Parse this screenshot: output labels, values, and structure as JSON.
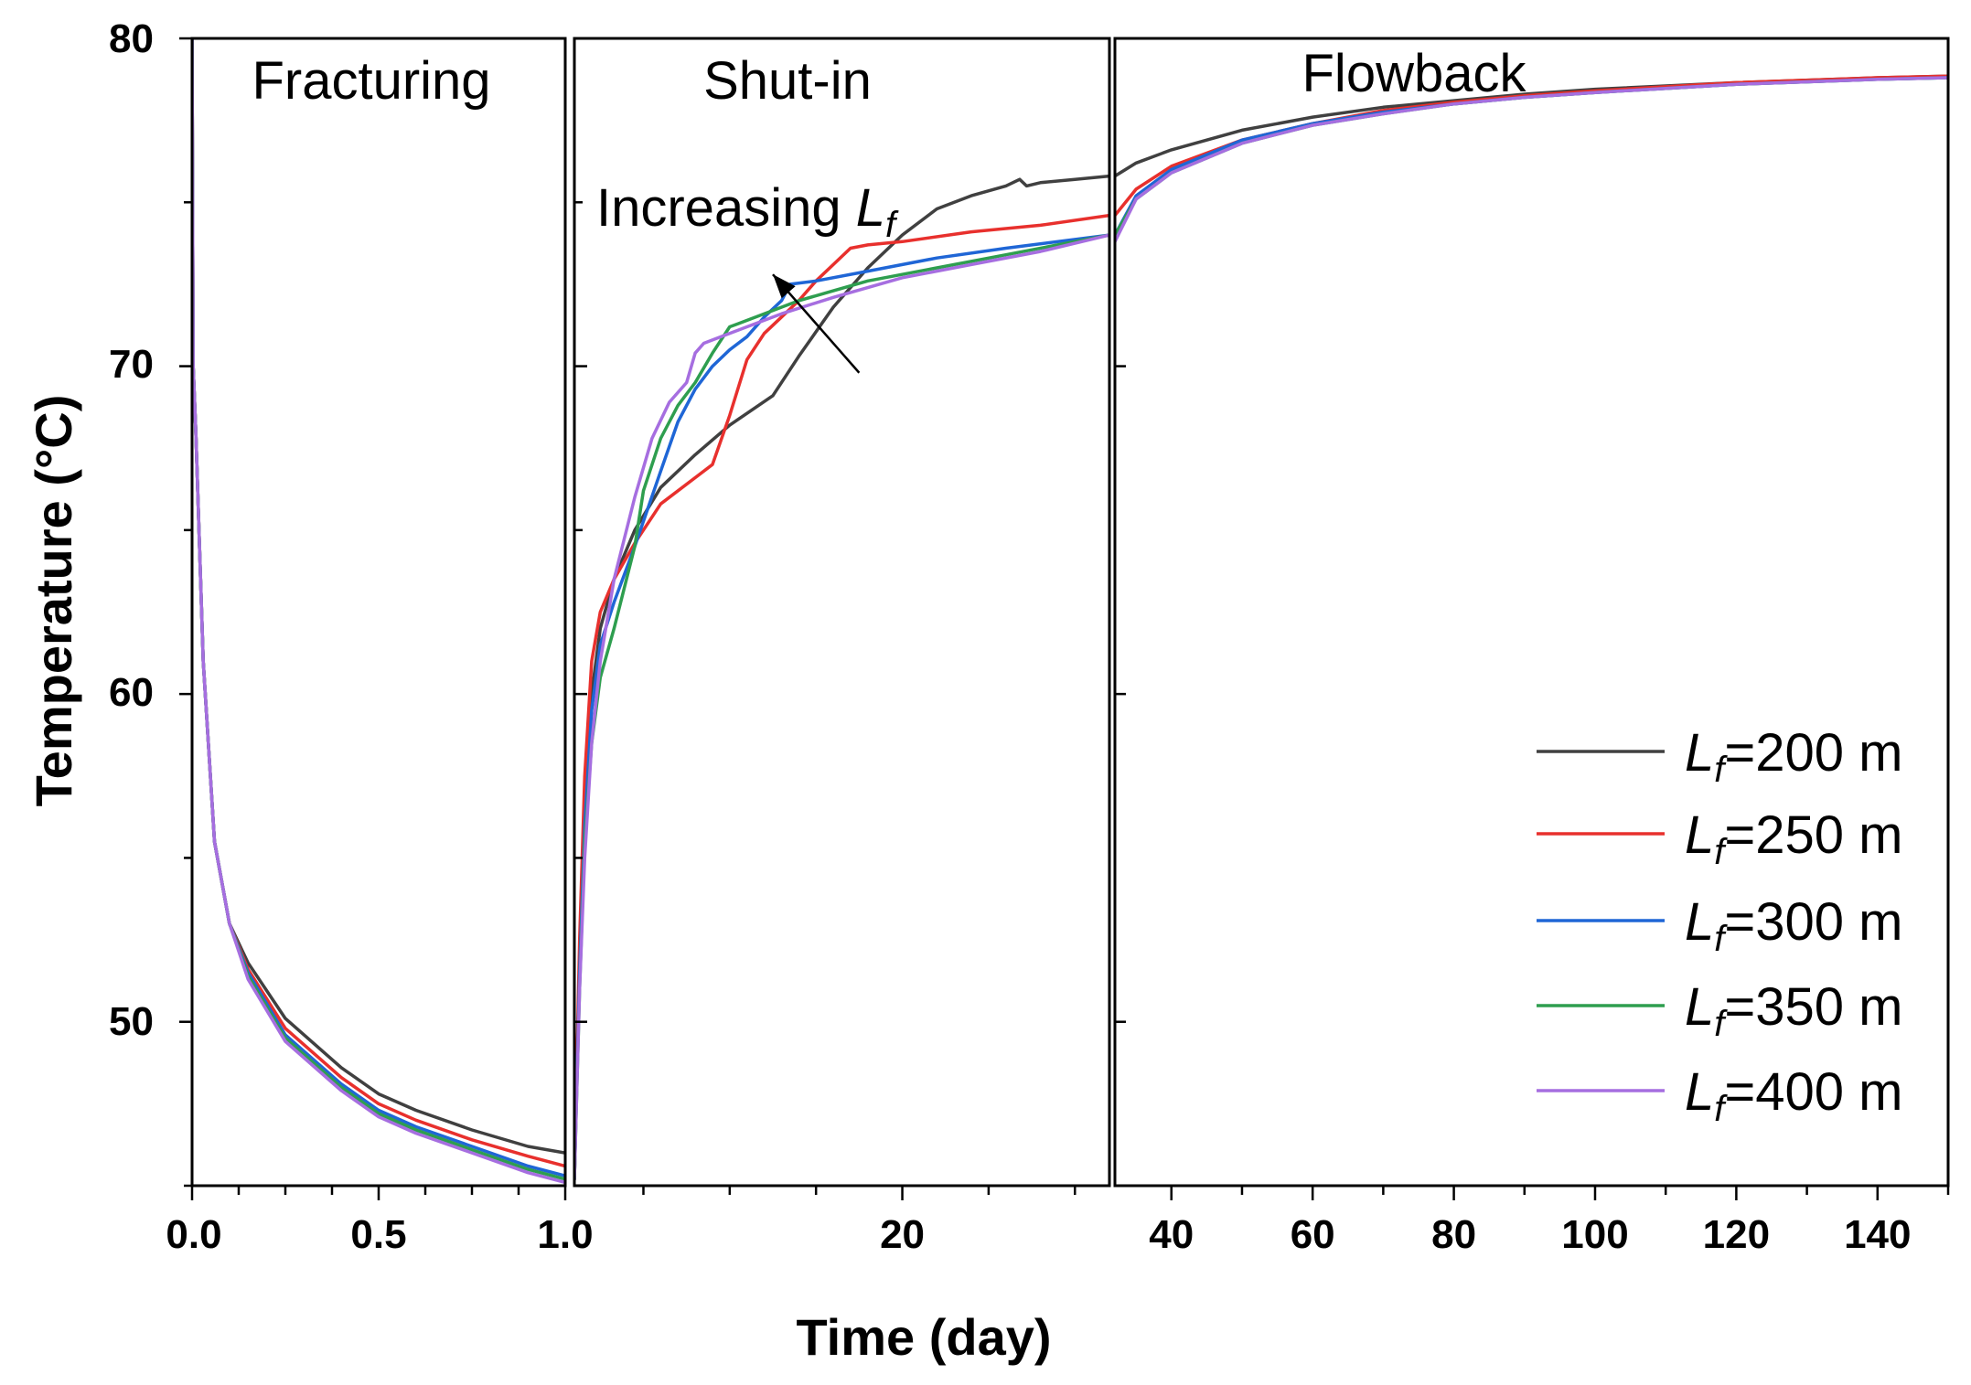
{
  "chart_data": {
    "type": "line",
    "xlabel": "Time (day)",
    "ylabel": "Temperature (°C)",
    "ylim": [
      45,
      80
    ],
    "yticks": [
      "50",
      "60",
      "70",
      "80"
    ],
    "panels": [
      {
        "name": "Fracturing",
        "label": "Fracturing",
        "xlim": [
          0,
          1
        ],
        "xticks": [
          "0.0",
          "0.5",
          "1.0"
        ],
        "xtick_values": [
          0,
          0.5,
          1.0
        ],
        "minor_step": 0.125
      },
      {
        "name": "Shut-in",
        "label": "Shut-in",
        "xlim": [
          1,
          32
        ],
        "xticks": [
          "20"
        ],
        "xtick_values": [
          20
        ],
        "minor_step": 5
      },
      {
        "name": "Flowback",
        "label": "Flowback",
        "xlim": [
          32,
          150
        ],
        "xticks": [
          "40",
          "60",
          "80",
          "100",
          "120",
          "140"
        ],
        "xtick_values": [
          40,
          60,
          80,
          100,
          120,
          140
        ],
        "minor_step": 10
      }
    ],
    "annotation": {
      "text": "Increasing ",
      "italic": "L",
      "sub": "f",
      "from": [
        17.5,
        69.8
      ],
      "to": [
        12.5,
        72.8
      ]
    },
    "legend": {
      "position": "right"
    },
    "series": [
      {
        "name": "Lf=200 m",
        "label_main": "L",
        "label_sub": "f",
        "label_rest": "=200 m",
        "color": "#404040",
        "panels": [
          [
            [
              0,
              80
            ],
            [
              0.003,
              70
            ],
            [
              0.01,
              68
            ],
            [
              0.03,
              61
            ],
            [
              0.06,
              55.5
            ],
            [
              0.1,
              53
            ],
            [
              0.15,
              51.8
            ],
            [
              0.25,
              50.1
            ],
            [
              0.4,
              48.6
            ],
            [
              0.5,
              47.8
            ],
            [
              0.6,
              47.3
            ],
            [
              0.75,
              46.7
            ],
            [
              0.9,
              46.2
            ],
            [
              1.0,
              46
            ]
          ],
          [
            [
              1,
              45.2
            ],
            [
              1.3,
              52
            ],
            [
              1.6,
              56.5
            ],
            [
              2,
              60
            ],
            [
              2.5,
              62
            ],
            [
              3.3,
              63.5
            ],
            [
              4.5,
              65
            ],
            [
              6,
              66.3
            ],
            [
              8,
              67.3
            ],
            [
              10,
              68.2
            ],
            [
              12.5,
              69.1
            ],
            [
              14,
              70.3
            ],
            [
              16,
              71.8
            ],
            [
              18,
              73
            ],
            [
              20,
              74
            ],
            [
              22,
              74.8
            ],
            [
              24,
              75.2
            ],
            [
              26,
              75.5
            ],
            [
              26.8,
              75.7
            ],
            [
              27.2,
              75.5
            ],
            [
              28,
              75.6
            ],
            [
              30,
              75.7
            ],
            [
              32,
              75.8
            ]
          ],
          [
            [
              32,
              75.8
            ],
            [
              35,
              76.2
            ],
            [
              40,
              76.6
            ],
            [
              50,
              77.2
            ],
            [
              60,
              77.6
            ],
            [
              70,
              77.9
            ],
            [
              80,
              78.1
            ],
            [
              90,
              78.3
            ],
            [
              100,
              78.45
            ],
            [
              120,
              78.65
            ],
            [
              140,
              78.8
            ],
            [
              150,
              78.85
            ]
          ]
        ]
      },
      {
        "name": "Lf=250 m",
        "label_main": "L",
        "label_sub": "f",
        "label_rest": "=250 m",
        "color": "#e8302d",
        "panels": [
          [
            [
              0,
              80
            ],
            [
              0.003,
              70
            ],
            [
              0.01,
              68
            ],
            [
              0.03,
              61
            ],
            [
              0.06,
              55.5
            ],
            [
              0.1,
              53
            ],
            [
              0.15,
              51.6
            ],
            [
              0.25,
              49.8
            ],
            [
              0.4,
              48.3
            ],
            [
              0.5,
              47.5
            ],
            [
              0.6,
              47
            ],
            [
              0.75,
              46.4
            ],
            [
              0.9,
              45.9
            ],
            [
              1.0,
              45.6
            ]
          ],
          [
            [
              1,
              45.2
            ],
            [
              1.3,
              52.5
            ],
            [
              1.6,
              57.5
            ],
            [
              2,
              61
            ],
            [
              2.5,
              62.5
            ],
            [
              3.3,
              63.5
            ],
            [
              4.5,
              64.6
            ],
            [
              6,
              65.8
            ],
            [
              8,
              66.6
            ],
            [
              9,
              67
            ],
            [
              10,
              68.5
            ],
            [
              11,
              70.2
            ],
            [
              12,
              71
            ],
            [
              13,
              71.5
            ],
            [
              14,
              72
            ],
            [
              15,
              72.6
            ],
            [
              16,
              73.1
            ],
            [
              17,
              73.6
            ],
            [
              18,
              73.7
            ],
            [
              20,
              73.8
            ],
            [
              24,
              74.1
            ],
            [
              28,
              74.3
            ],
            [
              32,
              74.6
            ]
          ],
          [
            [
              32,
              74.6
            ],
            [
              35,
              75.4
            ],
            [
              40,
              76.1
            ],
            [
              50,
              76.9
            ],
            [
              60,
              77.4
            ],
            [
              70,
              77.8
            ],
            [
              80,
              78.05
            ],
            [
              90,
              78.25
            ],
            [
              100,
              78.4
            ],
            [
              120,
              78.65
            ],
            [
              140,
              78.8
            ],
            [
              150,
              78.85
            ]
          ]
        ]
      },
      {
        "name": "Lf=300 m",
        "label_main": "L",
        "label_sub": "f",
        "label_rest": "=300 m",
        "color": "#1f66d6",
        "panels": [
          [
            [
              0,
              80
            ],
            [
              0.003,
              70
            ],
            [
              0.01,
              68
            ],
            [
              0.03,
              61
            ],
            [
              0.06,
              55.5
            ],
            [
              0.1,
              53
            ],
            [
              0.15,
              51.5
            ],
            [
              0.25,
              49.6
            ],
            [
              0.4,
              48.1
            ],
            [
              0.5,
              47.3
            ],
            [
              0.6,
              46.8
            ],
            [
              0.75,
              46.2
            ],
            [
              0.9,
              45.6
            ],
            [
              1.0,
              45.3
            ]
          ],
          [
            [
              1,
              45.2
            ],
            [
              1.3,
              51.5
            ],
            [
              1.6,
              56
            ],
            [
              2,
              59.5
            ],
            [
              2.5,
              61.5
            ],
            [
              3.3,
              62.8
            ],
            [
              4.5,
              64.5
            ],
            [
              6,
              66.8
            ],
            [
              7,
              68.3
            ],
            [
              8,
              69.3
            ],
            [
              9,
              70
            ],
            [
              10,
              70.5
            ],
            [
              11,
              70.9
            ],
            [
              12,
              71.5
            ],
            [
              13,
              72
            ],
            [
              13.5,
              72.5
            ],
            [
              15,
              72.6
            ],
            [
              18,
              72.9
            ],
            [
              22,
              73.3
            ],
            [
              26,
              73.6
            ],
            [
              32,
              74
            ]
          ],
          [
            [
              32,
              74
            ],
            [
              35,
              75.2
            ],
            [
              40,
              76
            ],
            [
              50,
              76.9
            ],
            [
              60,
              77.4
            ],
            [
              70,
              77.75
            ],
            [
              80,
              78.0
            ],
            [
              90,
              78.2
            ],
            [
              100,
              78.35
            ],
            [
              120,
              78.6
            ],
            [
              140,
              78.75
            ],
            [
              150,
              78.8
            ]
          ]
        ]
      },
      {
        "name": "Lf=350 m",
        "label_main": "L",
        "label_sub": "f",
        "label_rest": "=350 m",
        "color": "#2e9e4f",
        "panels": [
          [
            [
              0,
              80
            ],
            [
              0.003,
              70
            ],
            [
              0.01,
              68
            ],
            [
              0.03,
              61
            ],
            [
              0.06,
              55.5
            ],
            [
              0.1,
              53
            ],
            [
              0.15,
              51.4
            ],
            [
              0.25,
              49.5
            ],
            [
              0.4,
              48
            ],
            [
              0.5,
              47.2
            ],
            [
              0.6,
              46.7
            ],
            [
              0.75,
              46.1
            ],
            [
              0.9,
              45.5
            ],
            [
              1.0,
              45.2
            ]
          ],
          [
            [
              1,
              45.2
            ],
            [
              1.3,
              51
            ],
            [
              1.6,
              55.5
            ],
            [
              2,
              58.5
            ],
            [
              2.5,
              60.5
            ],
            [
              3.3,
              62
            ],
            [
              4.5,
              64.5
            ],
            [
              5,
              66.2
            ],
            [
              6,
              67.8
            ],
            [
              7,
              68.8
            ],
            [
              8,
              69.5
            ],
            [
              9,
              70.4
            ],
            [
              10,
              71.2
            ],
            [
              10.5,
              71.3
            ],
            [
              12,
              71.6
            ],
            [
              14,
              72
            ],
            [
              16,
              72.3
            ],
            [
              18,
              72.6
            ],
            [
              22,
              73
            ],
            [
              26,
              73.4
            ],
            [
              32,
              74
            ]
          ],
          [
            [
              32,
              74
            ],
            [
              35,
              75.1
            ],
            [
              40,
              75.9
            ],
            [
              50,
              76.8
            ],
            [
              60,
              77.35
            ],
            [
              70,
              77.7
            ],
            [
              80,
              78.0
            ],
            [
              90,
              78.2
            ],
            [
              100,
              78.35
            ],
            [
              120,
              78.6
            ],
            [
              140,
              78.75
            ],
            [
              150,
              78.8
            ]
          ]
        ]
      },
      {
        "name": "Lf=400 m",
        "label_main": "L",
        "label_sub": "f",
        "label_rest": "=400 m",
        "color": "#a66ee0",
        "panels": [
          [
            [
              0,
              80
            ],
            [
              0.003,
              70
            ],
            [
              0.01,
              68
            ],
            [
              0.03,
              61
            ],
            [
              0.06,
              55.5
            ],
            [
              0.1,
              53
            ],
            [
              0.15,
              51.3
            ],
            [
              0.25,
              49.4
            ],
            [
              0.4,
              47.9
            ],
            [
              0.5,
              47.1
            ],
            [
              0.6,
              46.6
            ],
            [
              0.75,
              46
            ],
            [
              0.9,
              45.4
            ],
            [
              1.0,
              45.1
            ]
          ],
          [
            [
              1,
              45.2
            ],
            [
              1.3,
              51
            ],
            [
              1.6,
              55
            ],
            [
              2,
              58.5
            ],
            [
              2.5,
              61
            ],
            [
              3.3,
              63.5
            ],
            [
              4.5,
              66
            ],
            [
              5.5,
              67.8
            ],
            [
              6.5,
              68.9
            ],
            [
              7.5,
              69.5
            ],
            [
              8,
              70.4
            ],
            [
              8.5,
              70.7
            ],
            [
              9.5,
              70.9
            ],
            [
              11,
              71.2
            ],
            [
              13,
              71.6
            ],
            [
              16,
              72.1
            ],
            [
              20,
              72.7
            ],
            [
              24,
              73.1
            ],
            [
              28,
              73.5
            ],
            [
              32,
              74
            ]
          ],
          [
            [
              32,
              73.8
            ],
            [
              35,
              75.1
            ],
            [
              40,
              75.9
            ],
            [
              50,
              76.8
            ],
            [
              60,
              77.35
            ],
            [
              70,
              77.7
            ],
            [
              80,
              78.0
            ],
            [
              90,
              78.2
            ],
            [
              100,
              78.35
            ],
            [
              120,
              78.6
            ],
            [
              140,
              78.75
            ],
            [
              150,
              78.8
            ]
          ]
        ]
      }
    ]
  }
}
